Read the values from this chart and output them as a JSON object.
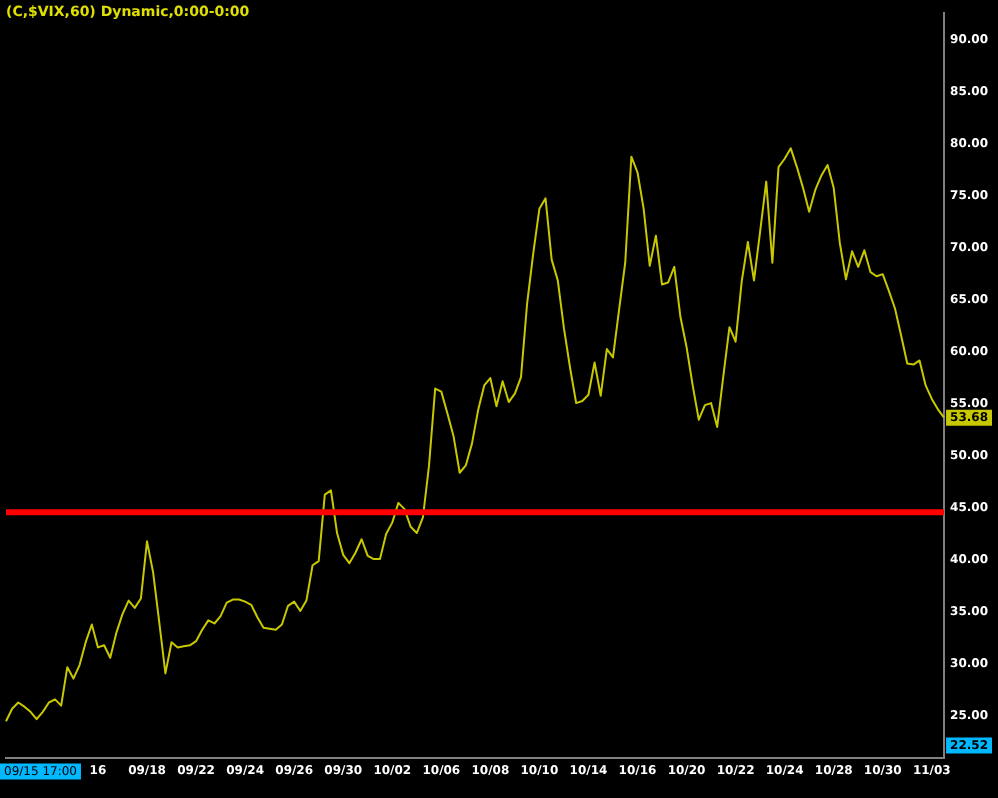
{
  "chart_data": {
    "type": "line",
    "title": "(C,$VIX,60) Dynamic,0:00-0:00",
    "categories": [
      null,
      null,
      null,
      null,
      null,
      null,
      null,
      null,
      null,
      null,
      null,
      null,
      null,
      null,
      null,
      "16",
      null,
      null,
      null,
      null,
      null,
      null,
      null,
      "09/18",
      null,
      null,
      null,
      null,
      null,
      null,
      null,
      "09/22",
      null,
      null,
      null,
      null,
      null,
      null,
      null,
      "09/24",
      null,
      null,
      null,
      null,
      null,
      null,
      null,
      "09/26",
      null,
      null,
      null,
      null,
      null,
      null,
      null,
      "09/30",
      null,
      null,
      null,
      null,
      null,
      null,
      null,
      "10/02",
      null,
      null,
      null,
      null,
      null,
      null,
      null,
      "10/06",
      null,
      null,
      null,
      null,
      null,
      null,
      null,
      "10/08",
      null,
      null,
      null,
      null,
      null,
      null,
      null,
      "10/10",
      null,
      null,
      null,
      null,
      null,
      null,
      null,
      "10/14",
      null,
      null,
      null,
      null,
      null,
      null,
      null,
      "10/16",
      null,
      null,
      null,
      null,
      null,
      null,
      null,
      "10/20",
      null,
      null,
      null,
      null,
      null,
      null,
      null,
      "10/22",
      null,
      null,
      null,
      null,
      null,
      null,
      null,
      "10/24",
      null,
      null,
      null,
      null,
      null,
      null,
      null,
      "10/28",
      null,
      null,
      null,
      null,
      null,
      null,
      null,
      "10/30",
      null,
      null,
      null,
      null,
      null,
      null,
      null,
      "11/03",
      null,
      null
    ],
    "series": [
      {
        "color": "#c8c800",
        "values": [
          24.5,
          25.7,
          26.3,
          25.9,
          25.4,
          24.7,
          25.4,
          26.3,
          26.6,
          26.0,
          29.7,
          28.6,
          29.9,
          32.1,
          33.8,
          31.6,
          31.8,
          30.6,
          33.0,
          34.8,
          36.1,
          35.4,
          36.3,
          41.8,
          38.8,
          34.0,
          29.1,
          32.1,
          31.6,
          31.7,
          31.8,
          32.2,
          33.3,
          34.2,
          33.9,
          34.6,
          35.9,
          36.2,
          36.2,
          36.0,
          35.7,
          34.5,
          33.5,
          33.4,
          33.3,
          33.8,
          35.6,
          36.0,
          35.1,
          36.1,
          39.5,
          39.9,
          46.3,
          46.7,
          42.6,
          40.5,
          39.7,
          40.7,
          42.0,
          40.4,
          40.1,
          40.1,
          42.5,
          43.6,
          45.5,
          44.9,
          43.2,
          42.6,
          44.1,
          49.1,
          56.5,
          56.2,
          54.1,
          51.9,
          48.4,
          49.1,
          51.2,
          54.4,
          56.8,
          57.5,
          54.8,
          57.2,
          55.2,
          56.0,
          57.6,
          64.7,
          69.5,
          73.8,
          74.8,
          68.9,
          66.9,
          62.3,
          58.5,
          55.1,
          55.3,
          55.9,
          59.0,
          55.8,
          60.3,
          59.5,
          64.1,
          68.6,
          78.8,
          77.3,
          73.8,
          68.3,
          71.2,
          66.5,
          66.7,
          68.2,
          63.4,
          60.5,
          56.8,
          53.5,
          54.9,
          55.1,
          52.8,
          57.7,
          62.4,
          61.0,
          66.8,
          70.6,
          66.9,
          71.6,
          76.4,
          68.6,
          77.8,
          78.6,
          79.6,
          77.8,
          75.8,
          73.5,
          75.6,
          77.0,
          78.0,
          75.8,
          70.5,
          67.0,
          69.7,
          68.2,
          69.8,
          67.7,
          67.3,
          67.5,
          65.9,
          64.2,
          61.6,
          58.9,
          58.8,
          59.2,
          56.8,
          55.5,
          54.5,
          53.7
        ]
      }
    ],
    "ylim": [
      21,
      92.6
    ],
    "yticks": [
      {
        "value": 25,
        "label": "25.00"
      },
      {
        "value": 30,
        "label": "30.00"
      },
      {
        "value": 35,
        "label": "35.00"
      },
      {
        "value": 40,
        "label": "40.00"
      },
      {
        "value": 45,
        "label": "45.00"
      },
      {
        "value": 50,
        "label": "50.00"
      },
      {
        "value": 55,
        "label": "55.00"
      },
      {
        "value": 60,
        "label": "60.00"
      },
      {
        "value": 65,
        "label": "65.00"
      },
      {
        "value": 70,
        "label": "70.00"
      },
      {
        "value": 75,
        "label": "75.00"
      },
      {
        "value": 80,
        "label": "80.00"
      },
      {
        "value": 85,
        "label": "85.00"
      },
      {
        "value": 90,
        "label": "90.00"
      }
    ],
    "ref_lines": [
      {
        "axis": "y",
        "value": 44.6,
        "color": "#ff0000"
      }
    ],
    "annotations": [
      {
        "text": "53.68",
        "y": 53.68
      },
      "22.52",
      "09/15 17:00"
    ],
    "grid": false,
    "legend": false,
    "marker": "none",
    "line_style": "solid"
  }
}
